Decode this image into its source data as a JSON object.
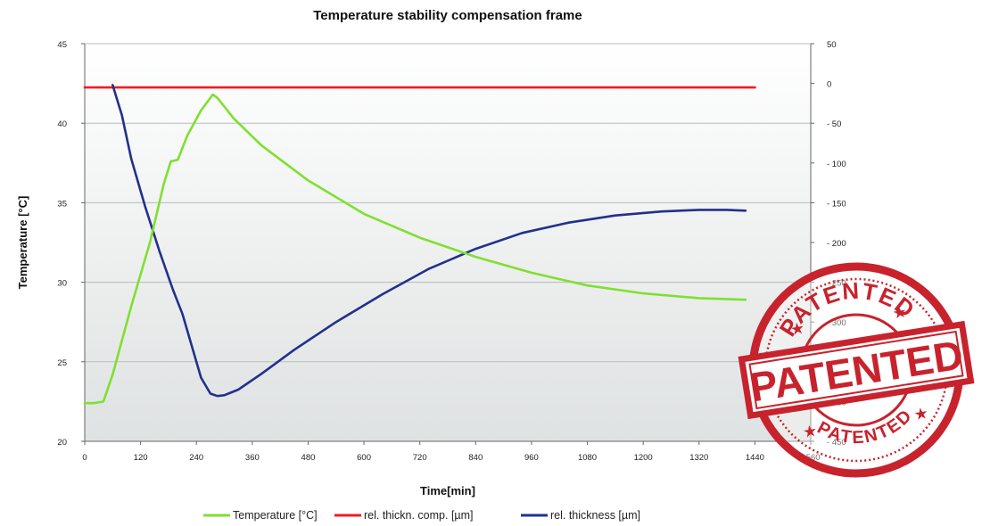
{
  "chart_data": {
    "type": "line",
    "title": "Temperature stability compensation frame",
    "xlabel": "Time[min]",
    "ylabel": "Temperature [°C]",
    "y2label": "",
    "xlim": [
      0,
      1560
    ],
    "ylim": [
      20,
      45
    ],
    "y2lim": [
      -450,
      50
    ],
    "x_ticks": [
      0,
      120,
      240,
      360,
      480,
      600,
      720,
      840,
      960,
      1080,
      1200,
      1320,
      1440,
      1560
    ],
    "y_ticks": [
      20,
      25,
      30,
      35,
      40,
      45
    ],
    "y2_ticks": [
      50,
      0,
      -50,
      -100,
      -150,
      -200,
      -250,
      -300,
      -350,
      -400,
      -450
    ],
    "y2_tick_labels": [
      "50",
      "0",
      "- 50",
      "- 100",
      "- 150",
      "- 200",
      "- 250",
      "- 300",
      "- 350",
      "- 400",
      "- 450"
    ],
    "grid": "horizontal",
    "legend_position": "bottom",
    "series": [
      {
        "name": "Temperature [°C]",
        "axis": "left",
        "color": "#7fe030",
        "x": [
          0,
          20,
          40,
          60,
          100,
          140,
          170,
          185,
          200,
          220,
          250,
          275,
          285,
          320,
          380,
          480,
          600,
          720,
          840,
          960,
          1080,
          1200,
          1320,
          1420
        ],
        "y": [
          22.4,
          22.4,
          22.5,
          24.2,
          28.5,
          32.5,
          36.2,
          37.6,
          37.7,
          39.2,
          40.8,
          41.8,
          41.6,
          40.3,
          38.6,
          36.4,
          34.3,
          32.8,
          31.6,
          30.6,
          29.8,
          29.3,
          29.0,
          28.9
        ]
      },
      {
        "name": "rel. thickn. comp. [µm]",
        "axis": "right",
        "color": "#ee1c25",
        "x": [
          0,
          1440
        ],
        "y": [
          -5,
          -5
        ]
      },
      {
        "name": "rel. thickness [µm]",
        "axis": "right",
        "color": "#23308c",
        "x": [
          60,
          80,
          100,
          130,
          160,
          190,
          210,
          230,
          250,
          270,
          285,
          300,
          330,
          380,
          450,
          540,
          640,
          740,
          840,
          940,
          1040,
          1140,
          1240,
          1320,
          1380,
          1420
        ],
        "y": [
          -2,
          -40,
          -95,
          -155,
          -210,
          -260,
          -290,
          -330,
          -370,
          -390,
          -393,
          -392,
          -385,
          -365,
          -335,
          -300,
          -265,
          -233,
          -208,
          -188,
          -175,
          -166,
          -161,
          -159,
          -159,
          -160
        ]
      }
    ]
  },
  "stamp": {
    "text_main": "PATENTED",
    "text_top": "PATENTED",
    "text_bottom": "PATENTED",
    "color": "#c8232d"
  }
}
